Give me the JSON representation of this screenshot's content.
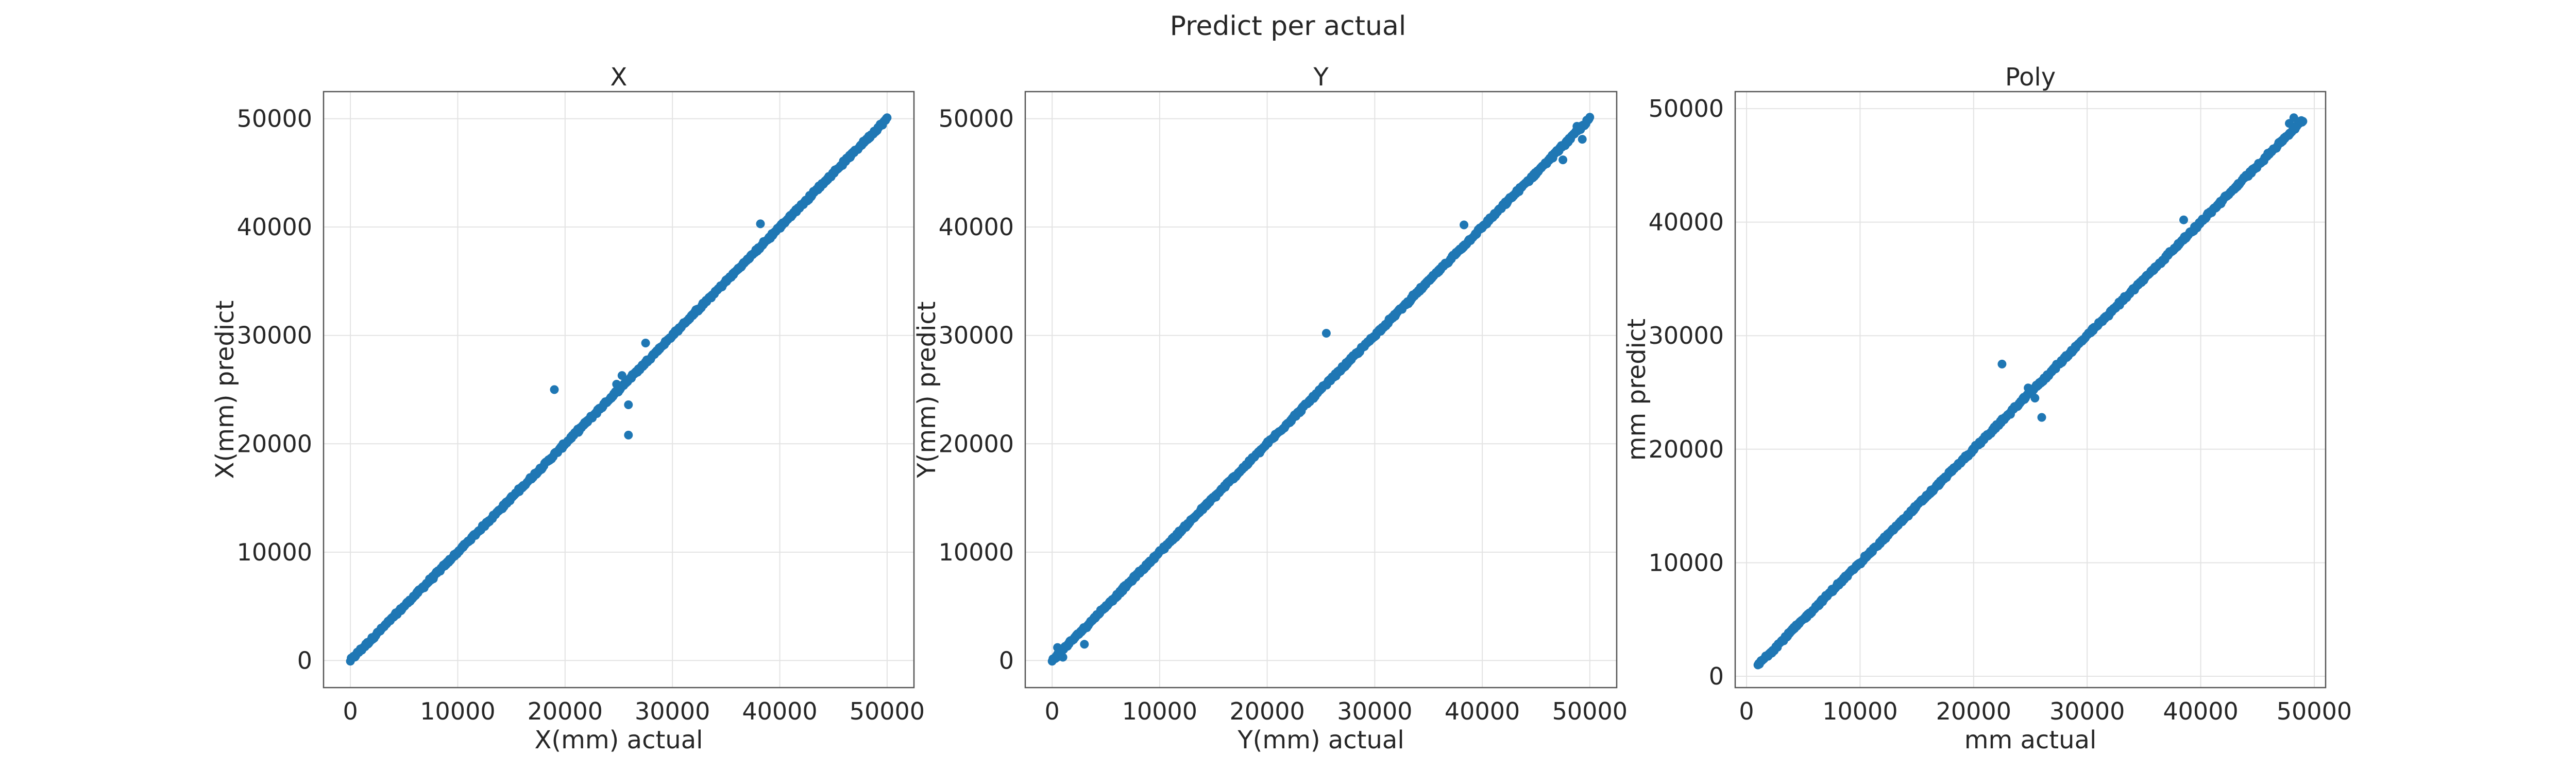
{
  "figure": {
    "title": "Predict per actual"
  },
  "chart_data": [
    {
      "type": "scatter",
      "title": "X",
      "xlabel": "X(mm) actual",
      "ylabel": "X(mm) predict",
      "xlim": [
        -2500,
        52500
      ],
      "ylim": [
        -2500,
        52500
      ],
      "xticks": [
        0,
        10000,
        20000,
        30000,
        40000,
        50000
      ],
      "yticks": [
        0,
        10000,
        20000,
        30000,
        40000,
        50000
      ],
      "grid": true,
      "color": "#1f77b4",
      "trend": {
        "x_range": [
          0,
          50000
        ],
        "slope": 1.0,
        "intercept": 0
      },
      "outliers": [
        [
          19000,
          25000
        ],
        [
          25900,
          20800
        ],
        [
          38200,
          40300
        ],
        [
          27500,
          29300
        ],
        [
          25300,
          26300
        ],
        [
          25900,
          23600
        ],
        [
          24800,
          25500
        ]
      ]
    },
    {
      "type": "scatter",
      "title": "Y",
      "xlabel": "Y(mm) actual",
      "ylabel": "Y(mm) predict",
      "xlim": [
        -2500,
        52500
      ],
      "ylim": [
        -2500,
        52500
      ],
      "xticks": [
        0,
        10000,
        20000,
        30000,
        40000,
        50000
      ],
      "yticks": [
        0,
        10000,
        20000,
        30000,
        40000,
        50000
      ],
      "grid": true,
      "color": "#1f77b4",
      "trend": {
        "x_range": [
          0,
          50000
        ],
        "slope": 1.0,
        "intercept": 0
      },
      "outliers": [
        [
          25500,
          30200
        ],
        [
          38300,
          40200
        ],
        [
          500,
          1200
        ],
        [
          1000,
          300
        ],
        [
          3000,
          1500
        ],
        [
          48800,
          49300
        ],
        [
          47500,
          46200
        ],
        [
          49300,
          48100
        ]
      ]
    },
    {
      "type": "scatter",
      "title": "Poly",
      "xlabel": "mm actual",
      "ylabel": "mm predict",
      "xlim": [
        -1000,
        51000
      ],
      "ylim": [
        -1000,
        51500
      ],
      "xticks": [
        0,
        10000,
        20000,
        30000,
        40000,
        50000
      ],
      "yticks": [
        0,
        10000,
        20000,
        30000,
        40000,
        50000
      ],
      "grid": true,
      "color": "#1f77b4",
      "trend": {
        "x_range": [
          1000,
          49000
        ],
        "slope": 1.0,
        "intercept": 0
      },
      "outliers": [
        [
          22500,
          27500
        ],
        [
          26000,
          22800
        ],
        [
          38500,
          40200
        ],
        [
          25400,
          24500
        ],
        [
          24800,
          25400
        ],
        [
          48200,
          49200
        ],
        [
          47800,
          48700
        ]
      ]
    }
  ]
}
